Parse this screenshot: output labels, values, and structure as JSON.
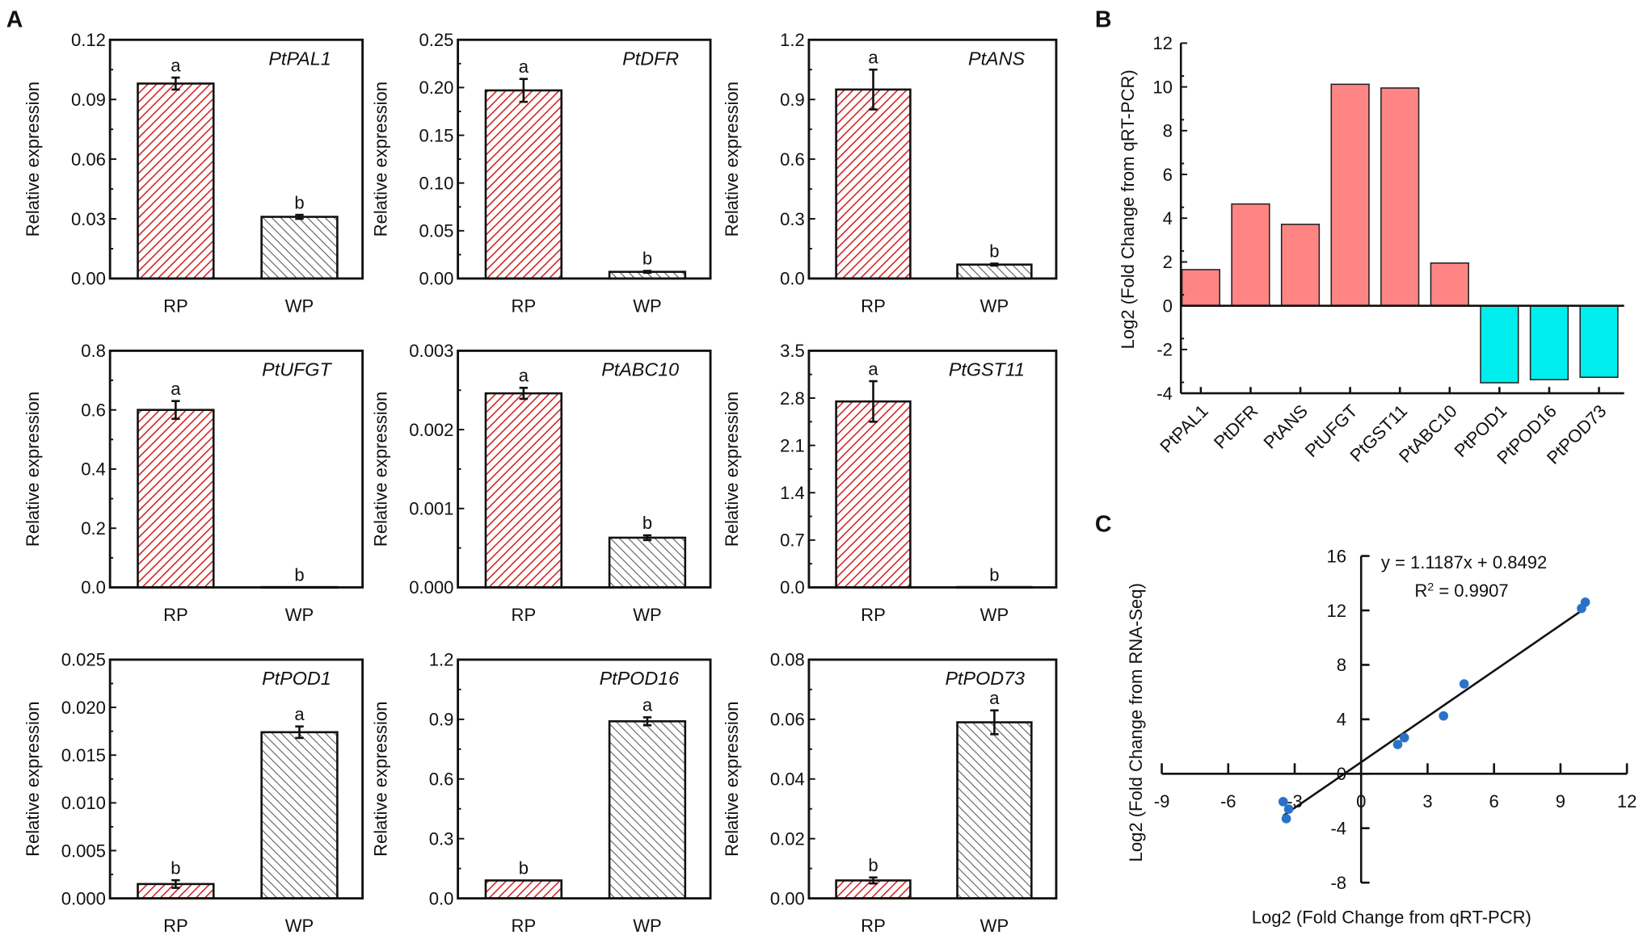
{
  "panel_labels": {
    "a": "A",
    "b": "B",
    "c": "C"
  },
  "colors": {
    "rp_hatch": "#d42020",
    "wp_hatch": "#555555",
    "up": "#ff8585",
    "down": "#00eeee",
    "points": "#2a72c8"
  },
  "chart_data": [
    {
      "type": "bar",
      "panel": "A",
      "title": "PtPAL1",
      "ylabel": "Relative expression",
      "categories": [
        "RP",
        "WP"
      ],
      "values": [
        0.098,
        0.031
      ],
      "errors": [
        0.003,
        0.001
      ],
      "letters": [
        "a",
        "b"
      ],
      "ylim": [
        0,
        0.12
      ],
      "yticks": [
        "0.00",
        "0.03",
        "0.06",
        "0.09",
        "0.12"
      ]
    },
    {
      "type": "bar",
      "panel": "A",
      "title": "PtDFR",
      "ylabel": "Relative expression",
      "categories": [
        "RP",
        "WP"
      ],
      "values": [
        0.197,
        0.007
      ],
      "errors": [
        0.012,
        0.001
      ],
      "letters": [
        "a",
        "b"
      ],
      "ylim": [
        0,
        0.25
      ],
      "yticks": [
        "0.00",
        "0.05",
        "0.10",
        "0.15",
        "0.20",
        "0.25"
      ]
    },
    {
      "type": "bar",
      "panel": "A",
      "title": "PtANS",
      "ylabel": "Relative expression",
      "categories": [
        "RP",
        "WP"
      ],
      "values": [
        0.95,
        0.07
      ],
      "errors": [
        0.1,
        0.005
      ],
      "letters": [
        "a",
        "b"
      ],
      "ylim": [
        0,
        1.2
      ],
      "yticks": [
        "0.0",
        "0.3",
        "0.6",
        "0.9",
        "1.2"
      ]
    },
    {
      "type": "bar",
      "panel": "A",
      "title": "PtUFGT",
      "ylabel": "Relative expression",
      "categories": [
        "RP",
        "WP"
      ],
      "values": [
        0.6,
        0.001
      ],
      "errors": [
        0.03,
        0.0
      ],
      "letters": [
        "a",
        "b"
      ],
      "ylim": [
        0,
        0.8
      ],
      "yticks": [
        "0.0",
        "0.2",
        "0.4",
        "0.6",
        "0.8"
      ]
    },
    {
      "type": "bar",
      "panel": "A",
      "title": "PtABC10",
      "ylabel": "Relative expression",
      "categories": [
        "RP",
        "WP"
      ],
      "values": [
        0.00246,
        0.00063
      ],
      "errors": [
        7e-05,
        3e-05
      ],
      "letters": [
        "a",
        "b"
      ],
      "ylim": [
        0,
        0.003
      ],
      "yticks": [
        "0.000",
        "0.001",
        "0.002",
        "0.003"
      ]
    },
    {
      "type": "bar",
      "panel": "A",
      "title": "PtGST11",
      "ylabel": "Relative expression",
      "categories": [
        "RP",
        "WP"
      ],
      "values": [
        2.75,
        0.005
      ],
      "errors": [
        0.3,
        0.0
      ],
      "letters": [
        "a",
        "b"
      ],
      "ylim": [
        0,
        3.5
      ],
      "yticks": [
        "0.0",
        "0.7",
        "1.4",
        "2.1",
        "2.8",
        "3.5"
      ]
    },
    {
      "type": "bar",
      "panel": "A",
      "title": "PtPOD1",
      "ylabel": "Relative expression",
      "categories": [
        "RP",
        "WP"
      ],
      "values": [
        0.0015,
        0.0174
      ],
      "errors": [
        0.0004,
        0.0006
      ],
      "letters": [
        "b",
        "a"
      ],
      "ylim": [
        0,
        0.025
      ],
      "yticks": [
        "0.000",
        "0.005",
        "0.010",
        "0.015",
        "0.020",
        "0.025"
      ]
    },
    {
      "type": "bar",
      "panel": "A",
      "title": "PtPOD16",
      "ylabel": "Relative expression",
      "categories": [
        "RP",
        "WP"
      ],
      "values": [
        0.09,
        0.89
      ],
      "errors": [
        0.0,
        0.02
      ],
      "letters": [
        "b",
        "a"
      ],
      "ylim": [
        0,
        1.2
      ],
      "yticks": [
        "0.0",
        "0.3",
        "0.6",
        "0.9",
        "1.2"
      ]
    },
    {
      "type": "bar",
      "panel": "A",
      "title": "PtPOD73",
      "ylabel": "Relative expression",
      "categories": [
        "RP",
        "WP"
      ],
      "values": [
        0.006,
        0.059
      ],
      "errors": [
        0.001,
        0.004
      ],
      "letters": [
        "b",
        "a"
      ],
      "ylim": [
        0,
        0.08
      ],
      "yticks": [
        "0.00",
        "0.02",
        "0.04",
        "0.06",
        "0.08"
      ]
    },
    {
      "type": "bar",
      "panel": "B",
      "ylabel": "Log2 (Fold Change from qRT-PCR)",
      "categories": [
        "PtPAL1",
        "PtDFR",
        "PtANS",
        "PtUFGT",
        "PtGST11",
        "PtABC10",
        "PtPOD1",
        "PtPOD16",
        "PtPOD73"
      ],
      "values": [
        1.65,
        4.65,
        3.72,
        10.12,
        9.95,
        1.95,
        -3.52,
        -3.38,
        -3.27
      ],
      "ylim": [
        -4,
        12
      ],
      "yticks": [
        "-4",
        "-2",
        "0",
        "2",
        "4",
        "6",
        "8",
        "10",
        "12"
      ]
    },
    {
      "type": "scatter",
      "panel": "C",
      "xlabel": "Log2 (Fold Change from qRT-PCR)",
      "ylabel": "Log2 (Fold Change from RNA-Seq)",
      "x": [
        -3.52,
        -3.27,
        -3.38,
        1.65,
        1.95,
        3.72,
        4.65,
        9.95,
        10.12
      ],
      "y": [
        -2.05,
        -2.6,
        -3.3,
        2.15,
        2.65,
        4.25,
        6.6,
        12.15,
        12.6
      ],
      "xlim": [
        -9,
        12
      ],
      "ylim": [
        -8,
        16
      ],
      "xticks": [
        "-9",
        "-6",
        "-3",
        "0",
        "3",
        "6",
        "9",
        "12"
      ],
      "yticks": [
        "-8",
        "-4",
        "0",
        "4",
        "8",
        "12",
        "16"
      ],
      "fit": {
        "slope": 1.1187,
        "intercept": 0.8492,
        "equation": "y = 1.1187x + 0.8492",
        "r2_label": "R",
        "r2_sup": "2",
        "r2_value": " = 0.9907"
      }
    }
  ]
}
